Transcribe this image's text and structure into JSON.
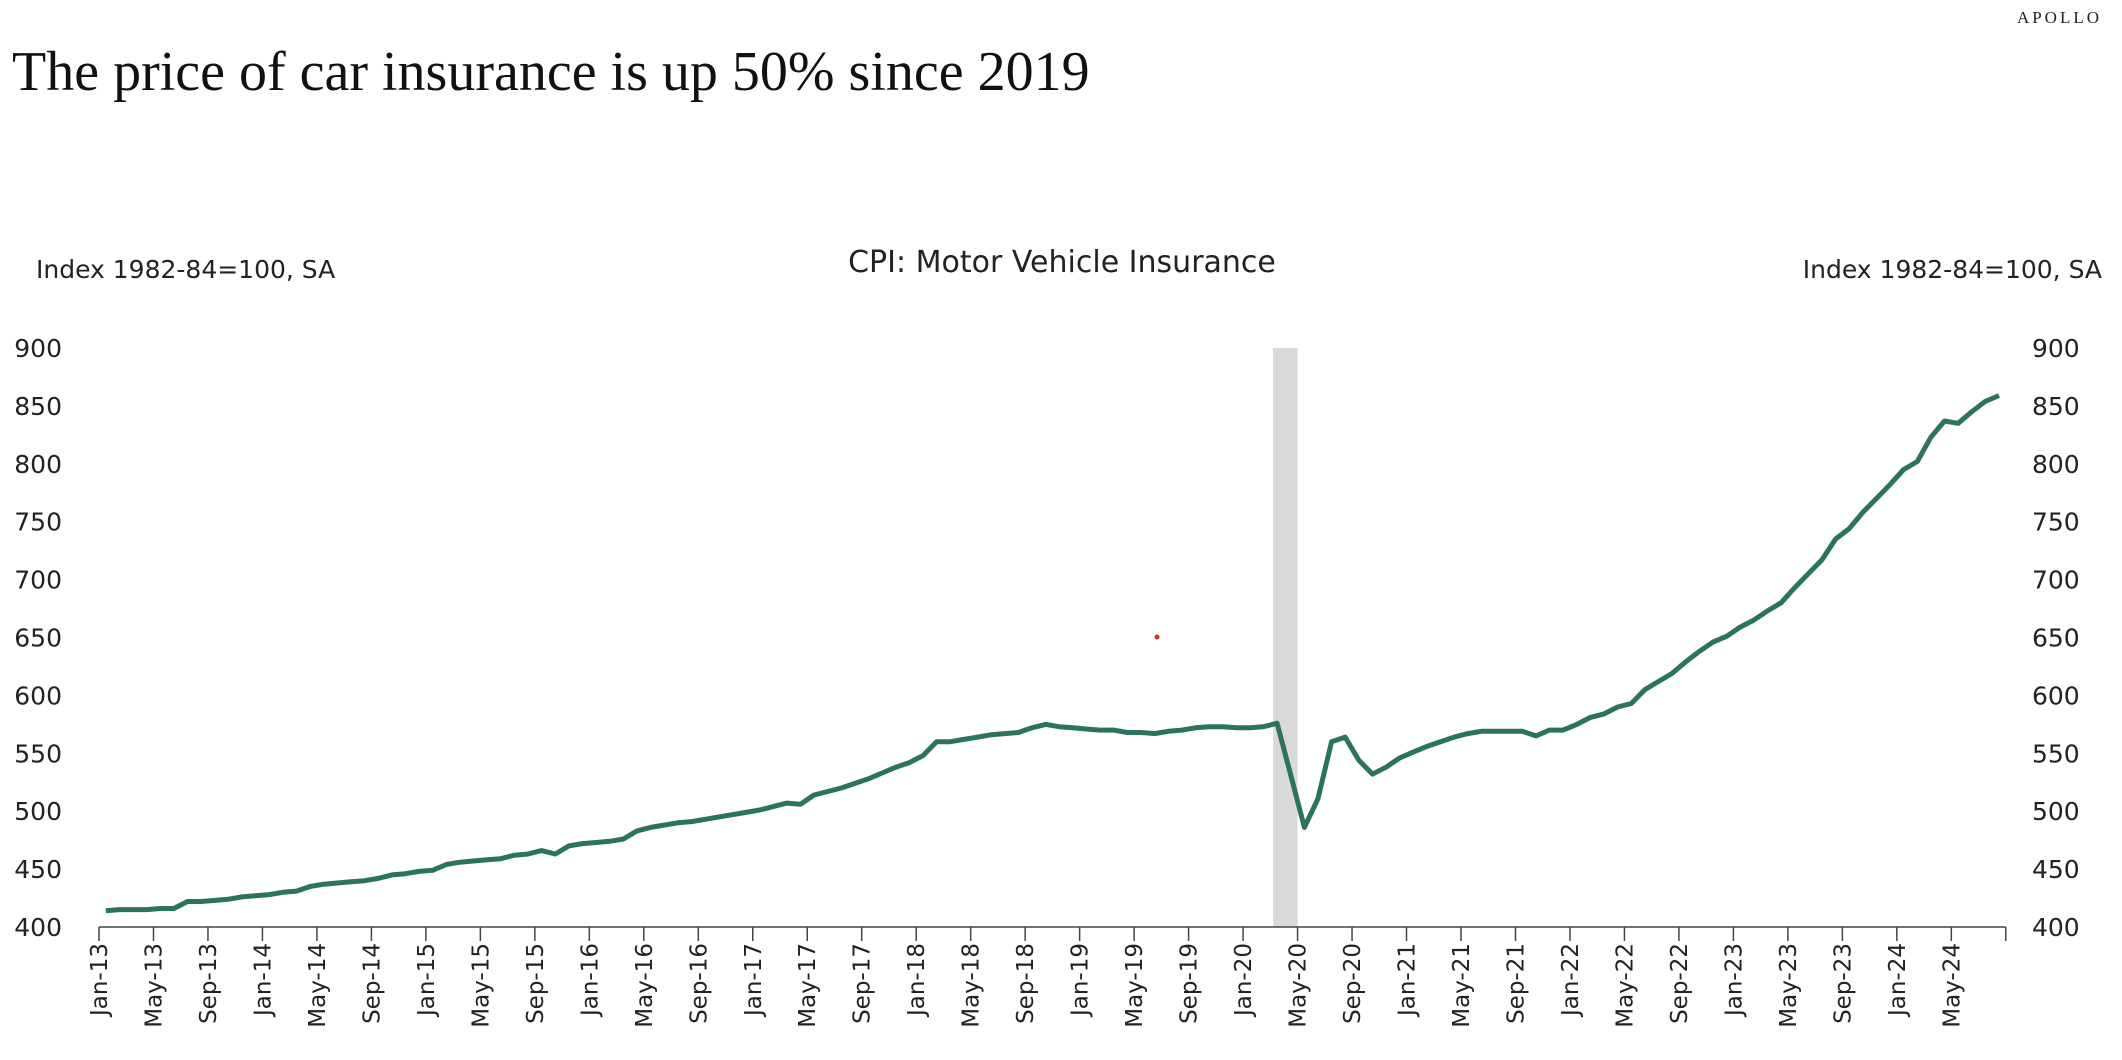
{
  "brand": "APOLLO",
  "title": "The price of car insurance is up 50% since 2019",
  "chart_data": {
    "type": "line",
    "title": "CPI: Motor Vehicle Insurance",
    "ylabel_left": "Index 1982-84=100, SA",
    "ylabel_right": "Index 1982-84=100, SA",
    "xlabel": "",
    "ylim": [
      400,
      900
    ],
    "yticks": [
      400,
      450,
      500,
      550,
      600,
      650,
      700,
      750,
      800,
      850,
      900
    ],
    "x_start": "Jan-13",
    "x_end": "Aug-24",
    "x_frequency": "monthly",
    "xtick_labels": [
      "Jan-13",
      "May-13",
      "Sep-13",
      "Jan-14",
      "May-14",
      "Sep-14",
      "Jan-15",
      "May-15",
      "Sep-15",
      "Jan-16",
      "May-16",
      "Sep-16",
      "Jan-17",
      "May-17",
      "Sep-17",
      "Jan-18",
      "May-18",
      "Sep-18",
      "Jan-19",
      "May-19",
      "Sep-19",
      "Jan-20",
      "May-20",
      "Sep-20",
      "Jan-21",
      "May-21",
      "Sep-21",
      "Jan-22",
      "May-22",
      "Sep-22",
      "Jan-23",
      "May-23",
      "Sep-23",
      "Jan-24",
      "May-24"
    ],
    "grid": false,
    "recession_shading": {
      "start": "Mar-20",
      "end": "Apr-20",
      "color": "#d9d9d9"
    },
    "series": [
      {
        "color": "#2b735c",
        "values": [
          414,
          415,
          415,
          415,
          416,
          416,
          422,
          422,
          423,
          424,
          426,
          427,
          428,
          430,
          431,
          435,
          437,
          438,
          439,
          440,
          442,
          445,
          446,
          448,
          449,
          454,
          456,
          457,
          458,
          459,
          462,
          463,
          466,
          463,
          470,
          472,
          473,
          474,
          476,
          483,
          486,
          488,
          490,
          491,
          493,
          495,
          497,
          499,
          501,
          504,
          507,
          506,
          514,
          517,
          520,
          524,
          528,
          533,
          538,
          542,
          548,
          560,
          560,
          562,
          564,
          566,
          567,
          568,
          572,
          575,
          573,
          572,
          571,
          570,
          570,
          568,
          568,
          567,
          569,
          570,
          572,
          573,
          573,
          572,
          572,
          573,
          576,
          531,
          486,
          511,
          560,
          564,
          544,
          532,
          538,
          546,
          551,
          556,
          560,
          564,
          567,
          569,
          569,
          569,
          569,
          565,
          570,
          570,
          575,
          581,
          584,
          590,
          593,
          605,
          612,
          619,
          629,
          638,
          646,
          651,
          659,
          665,
          673,
          680,
          693,
          705,
          717,
          735,
          744,
          758,
          770,
          782,
          795,
          802,
          823,
          837,
          835,
          845,
          854,
          859
        ]
      }
    ]
  }
}
